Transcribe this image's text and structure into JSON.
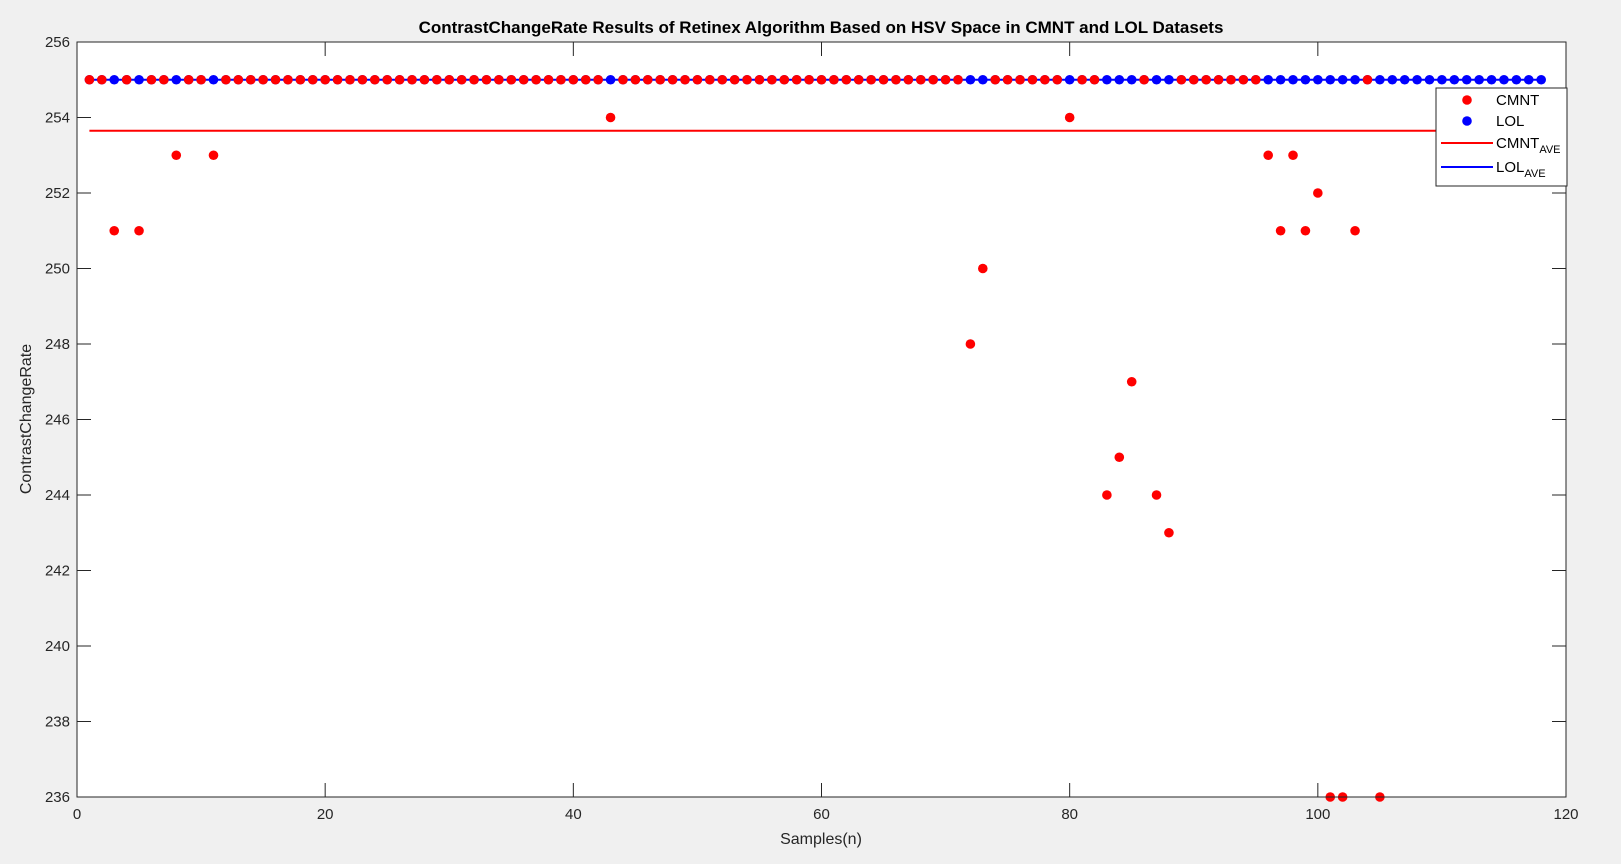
{
  "chart_data": {
    "type": "scatter",
    "title": "ContrastChangeRate Results of Retinex Algorithm Based on HSV Space in CMNT and LOL Datasets",
    "xlabel": "Samples(n)",
    "ylabel": "ContrastChangeRate",
    "xlim": [
      0,
      120
    ],
    "ylim": [
      236,
      256
    ],
    "x_ticks": [
      "0",
      "20",
      "40",
      "60",
      "80",
      "100",
      "120"
    ],
    "y_ticks": [
      "236",
      "238",
      "240",
      "242",
      "244",
      "246",
      "248",
      "250",
      "252",
      "254",
      "256"
    ],
    "grid": false,
    "legend_position": "top-right",
    "colors": {
      "cmnt": "#ff0000",
      "lol": "#0000ff"
    },
    "series": [
      {
        "name": "CMNT",
        "kind": "points",
        "color": "#ff0000",
        "x": [
          1,
          2,
          3,
          4,
          5,
          6,
          7,
          8,
          9,
          10,
          11,
          12,
          13,
          14,
          15,
          16,
          17,
          18,
          19,
          20,
          21,
          22,
          23,
          24,
          25,
          26,
          27,
          28,
          29,
          30,
          31,
          32,
          33,
          34,
          35,
          36,
          37,
          38,
          39,
          40,
          41,
          42,
          43,
          44,
          45,
          46,
          47,
          48,
          49,
          50,
          51,
          52,
          53,
          54,
          55,
          56,
          57,
          58,
          59,
          60,
          61,
          62,
          63,
          64,
          65,
          66,
          67,
          68,
          69,
          70,
          71,
          72,
          73,
          74,
          75,
          76,
          77,
          78,
          79,
          80,
          81,
          82,
          83,
          84,
          85,
          86,
          87,
          88,
          89,
          90,
          91,
          92,
          93,
          94,
          95,
          96,
          97,
          98,
          99,
          100,
          101,
          102,
          103,
          104,
          105
        ],
        "y": [
          255,
          255,
          251,
          255,
          251,
          255,
          255,
          253,
          255,
          255,
          253,
          255,
          255,
          255,
          255,
          255,
          255,
          255,
          255,
          255,
          255,
          255,
          255,
          255,
          255,
          255,
          255,
          255,
          255,
          255,
          255,
          255,
          255,
          255,
          255,
          255,
          255,
          255,
          255,
          255,
          255,
          255,
          254,
          255,
          255,
          255,
          255,
          255,
          255,
          255,
          255,
          255,
          255,
          255,
          255,
          255,
          255,
          255,
          255,
          255,
          255,
          255,
          255,
          255,
          255,
          255,
          255,
          255,
          255,
          255,
          255,
          248,
          250,
          255,
          255,
          255,
          255,
          255,
          255,
          254,
          255,
          255,
          244,
          245,
          247,
          255,
          244,
          243,
          255,
          255,
          255,
          255,
          255,
          255,
          255,
          253,
          251,
          253,
          251,
          252,
          236,
          236,
          251,
          255,
          236
        ]
      },
      {
        "name": "LOL",
        "kind": "points",
        "color": "#0000ff",
        "x": [
          1,
          2,
          3,
          4,
          5,
          6,
          7,
          8,
          9,
          10,
          11,
          12,
          13,
          14,
          15,
          16,
          17,
          18,
          19,
          20,
          21,
          22,
          23,
          24,
          25,
          26,
          27,
          28,
          29,
          30,
          31,
          32,
          33,
          34,
          35,
          36,
          37,
          38,
          39,
          40,
          41,
          42,
          43,
          44,
          45,
          46,
          47,
          48,
          49,
          50,
          51,
          52,
          53,
          54,
          55,
          56,
          57,
          58,
          59,
          60,
          61,
          62,
          63,
          64,
          65,
          66,
          67,
          68,
          69,
          70,
          71,
          72,
          73,
          74,
          75,
          76,
          77,
          78,
          79,
          80,
          81,
          82,
          83,
          84,
          85,
          86,
          87,
          88,
          89,
          90,
          91,
          92,
          93,
          94,
          95,
          96,
          97,
          98,
          99,
          100,
          101,
          102,
          103,
          104,
          105,
          106,
          107,
          108,
          109,
          110,
          111,
          112,
          113,
          114,
          115,
          116,
          117,
          118
        ],
        "y": [
          255,
          255,
          255,
          255,
          255,
          255,
          255,
          255,
          255,
          255,
          255,
          255,
          255,
          255,
          255,
          255,
          255,
          255,
          255,
          255,
          255,
          255,
          255,
          255,
          255,
          255,
          255,
          255,
          255,
          255,
          255,
          255,
          255,
          255,
          255,
          255,
          255,
          255,
          255,
          255,
          255,
          255,
          255,
          255,
          255,
          255,
          255,
          255,
          255,
          255,
          255,
          255,
          255,
          255,
          255,
          255,
          255,
          255,
          255,
          255,
          255,
          255,
          255,
          255,
          255,
          255,
          255,
          255,
          255,
          255,
          255,
          255,
          255,
          255,
          255,
          255,
          255,
          255,
          255,
          255,
          255,
          255,
          255,
          255,
          255,
          255,
          255,
          255,
          255,
          255,
          255,
          255,
          255,
          255,
          255,
          255,
          255,
          255,
          255,
          255,
          255,
          255,
          255,
          255,
          255,
          255,
          255,
          255,
          255,
          255,
          255,
          255,
          255,
          255,
          255,
          255,
          255,
          255
        ]
      },
      {
        "name": "CMNT",
        "name_sub": "AVE",
        "kind": "hline",
        "color": "#ff0000",
        "value": 253.65
      },
      {
        "name": "LOL",
        "name_sub": "AVE",
        "kind": "hline",
        "color": "#0000ff",
        "value": 255
      }
    ]
  }
}
